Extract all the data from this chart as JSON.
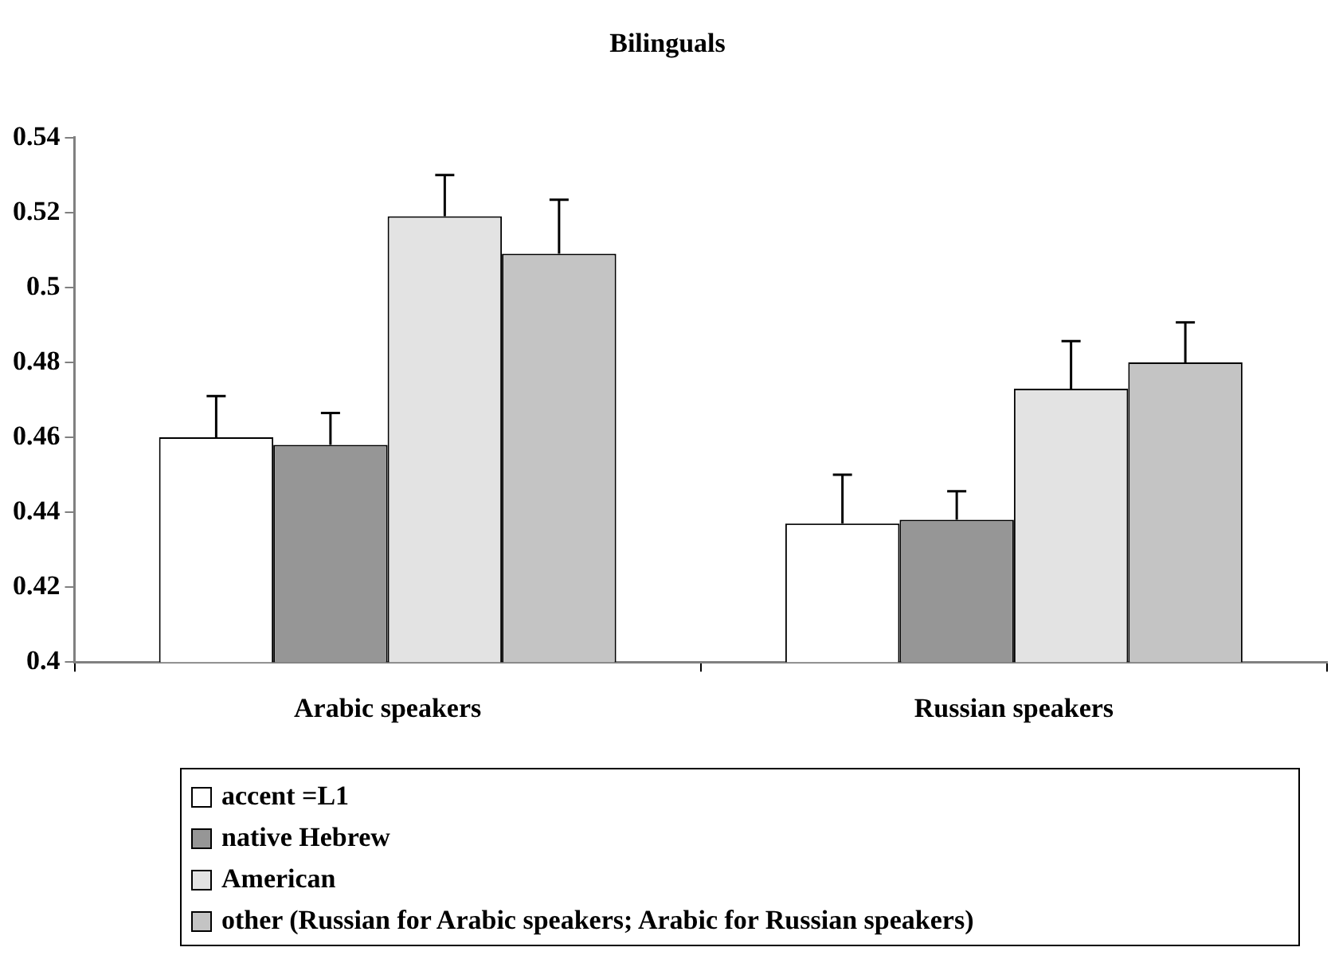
{
  "chart_data": {
    "type": "bar",
    "title": "Bilinguals",
    "categories": [
      "Arabic speakers",
      "Russian speakers"
    ],
    "series": [
      {
        "name": "accent =L1",
        "color": "#ffffff",
        "values": [
          0.46,
          0.437
        ],
        "errors": [
          [
            0.46,
            0.471
          ],
          [
            0.437,
            0.45
          ]
        ]
      },
      {
        "name": "native Hebrew",
        "color": "#969696",
        "values": [
          0.458,
          0.438
        ],
        "errors": [
          [
            0.458,
            0.4665
          ],
          [
            0.438,
            0.4456
          ]
        ]
      },
      {
        "name": "American",
        "color": "#e3e3e3",
        "values": [
          0.519,
          0.473
        ],
        "errors": [
          [
            0.519,
            0.53
          ],
          [
            0.473,
            0.4857
          ]
        ]
      },
      {
        "name": "other (Russian for Arabic speakers; Arabic for Russian speakers)",
        "color": "#c4c4c4",
        "values": [
          0.509,
          0.48
        ],
        "errors": [
          [
            0.509,
            0.5234
          ],
          [
            0.48,
            0.4907
          ]
        ]
      }
    ],
    "ylim": [
      0.4,
      0.54
    ],
    "yticks": [
      0.4,
      0.42,
      0.44,
      0.46,
      0.48,
      0.5,
      0.52,
      0.54
    ],
    "grid": false,
    "legend": "bottom"
  }
}
